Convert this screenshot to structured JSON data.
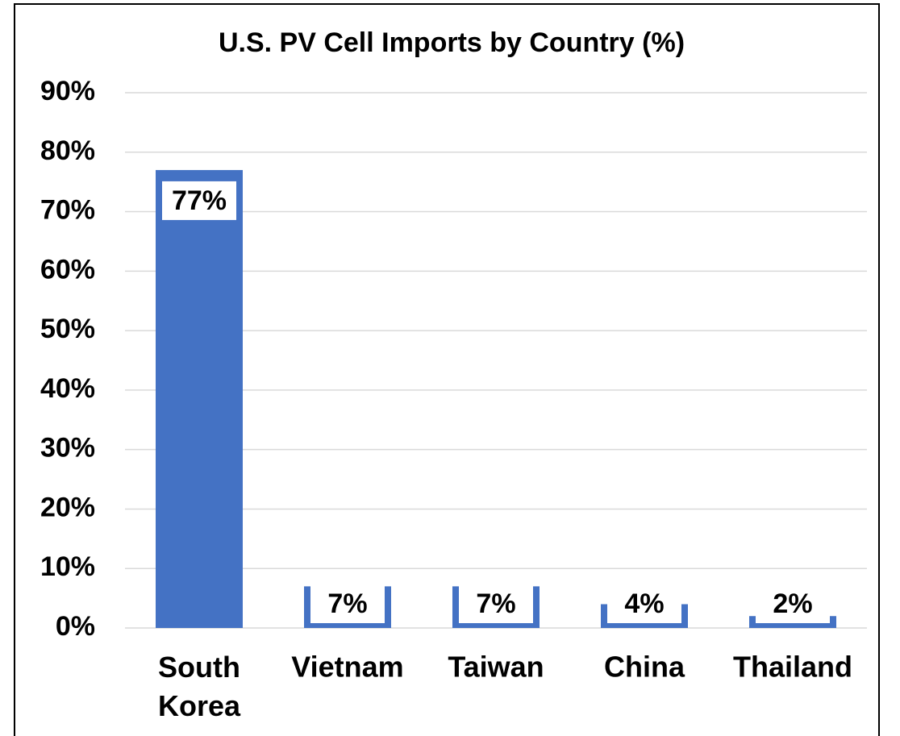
{
  "chart_data": {
    "type": "bar",
    "title": "U.S. PV Cell Imports by Country (%)",
    "categories": [
      "South Korea",
      "Vietnam",
      "Taiwan",
      "China",
      "Thailand"
    ],
    "values": [
      77,
      7,
      7,
      4,
      2
    ],
    "value_labels": [
      "77%",
      "7%",
      "7%",
      "4%",
      "2%"
    ],
    "color": "#4472c4",
    "ylim": [
      0,
      90
    ],
    "yticks": [
      {
        "value": 0,
        "label": "0%"
      },
      {
        "value": 10,
        "label": "10%"
      },
      {
        "value": 20,
        "label": "20%"
      },
      {
        "value": 30,
        "label": "30%"
      },
      {
        "value": 40,
        "label": "40%"
      },
      {
        "value": 50,
        "label": "50%"
      },
      {
        "value": 60,
        "label": "60%"
      },
      {
        "value": 70,
        "label": "70%"
      },
      {
        "value": 80,
        "label": "80%"
      },
      {
        "value": 90,
        "label": "90%"
      }
    ],
    "grid": true
  }
}
